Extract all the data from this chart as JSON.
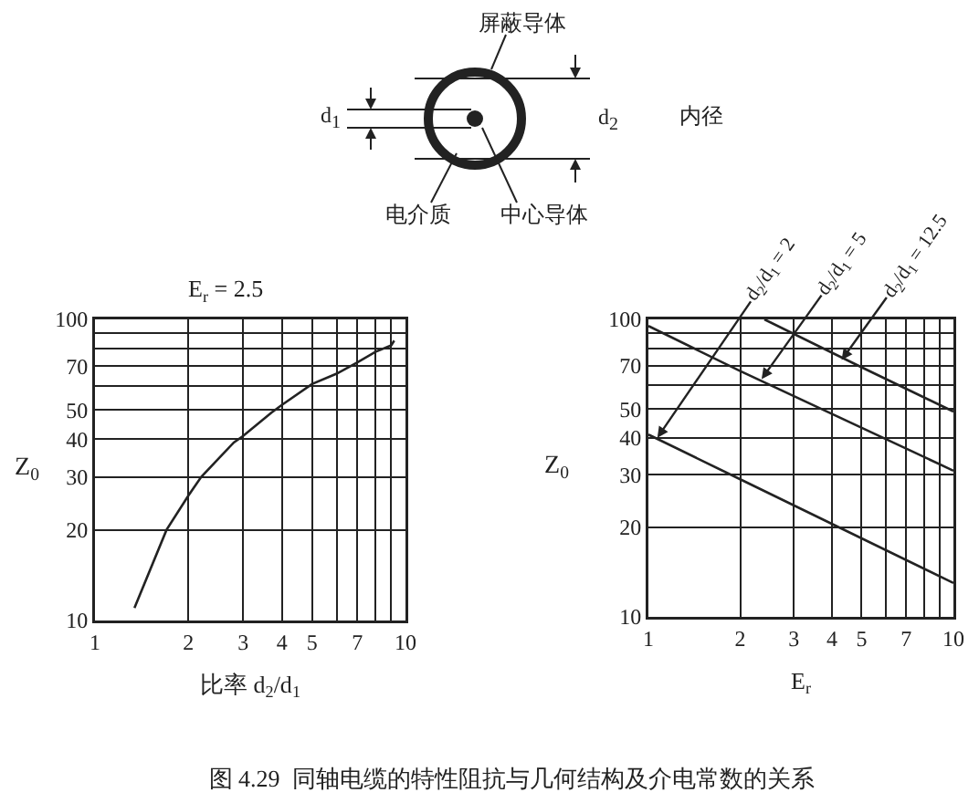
{
  "chart_data": [
    {
      "type": "other",
      "title": "图 4.29  同轴电缆的特性阻抗与几何结构及介电常数的关系",
      "annotations": [
        "屏蔽导体",
        "d$_{1}$",
        "d$_{2}$",
        "内径",
        "电介质",
        "中心导体"
      ]
    },
    {
      "type": "line",
      "title": "E$_{r}$ = 2.5",
      "xlabel": "比率 d$_{2}$/d$_{1}$",
      "ylabel": "Z$_{0}$",
      "x": [
        1.34,
        1.7,
        2,
        2.2,
        2.8,
        3,
        3.7,
        4,
        5,
        6,
        7,
        8,
        9,
        9.2
      ],
      "values": [
        11,
        20,
        26,
        30,
        39,
        41,
        49,
        52,
        61,
        66,
        72,
        78,
        82,
        85
      ],
      "color": "#222222",
      "log": "xy",
      "xlim": [
        1,
        10
      ],
      "ylim": [
        10,
        100
      ],
      "xticks": [
        1,
        2,
        3,
        4,
        5,
        {
          "value": 6,
          "label": null
        },
        7,
        {
          "value": 8,
          "label": null
        },
        {
          "value": 9,
          "label": null
        },
        10
      ],
      "yticks": [
        10,
        20,
        30,
        40,
        50,
        {
          "value": 60,
          "label": null
        },
        70,
        {
          "value": 80,
          "label": null
        },
        {
          "value": 90,
          "label": null
        },
        100
      ],
      "grid": true
    },
    {
      "type": "line",
      "xlabel": "E$_{r}$",
      "ylabel": "Z$_{0}$",
      "series": [
        {
          "color": "#222222",
          "x": [
            1,
            2,
            10
          ],
          "values": [
            41,
            29,
            13
          ]
        },
        {
          "color": "#222222",
          "x": [
            1,
            2,
            10
          ],
          "values": [
            95,
            67,
            31
          ]
        },
        {
          "color": "#222222",
          "x": [
            2.4,
            5,
            10
          ],
          "values": [
            100,
            69,
            49
          ]
        }
      ],
      "log": "xy",
      "xlim": [
        1,
        10
      ],
      "ylim": [
        10,
        100
      ],
      "xticks": [
        1,
        2,
        3,
        4,
        5,
        {
          "value": 6,
          "label": null
        },
        7,
        {
          "value": 8,
          "label": null
        },
        {
          "value": 9,
          "label": null
        },
        10
      ],
      "yticks": [
        10,
        20,
        30,
        40,
        50,
        {
          "value": 60,
          "label": null
        },
        70,
        {
          "value": 80,
          "label": null
        },
        {
          "value": 90,
          "label": null
        },
        100
      ],
      "grid": true,
      "annotations": [
        {
          "text": "d$_{2}$/d$_{1}$ = 2",
          "x": 1.07,
          "y": 40
        },
        {
          "text": "d$_{2}$/d$_{1}$ = 5",
          "x": 2.35,
          "y": 63
        },
        {
          "text": "d$_{2}$/d$_{1}$ = 12.5",
          "x": 4.3,
          "y": 73
        }
      ]
    }
  ]
}
